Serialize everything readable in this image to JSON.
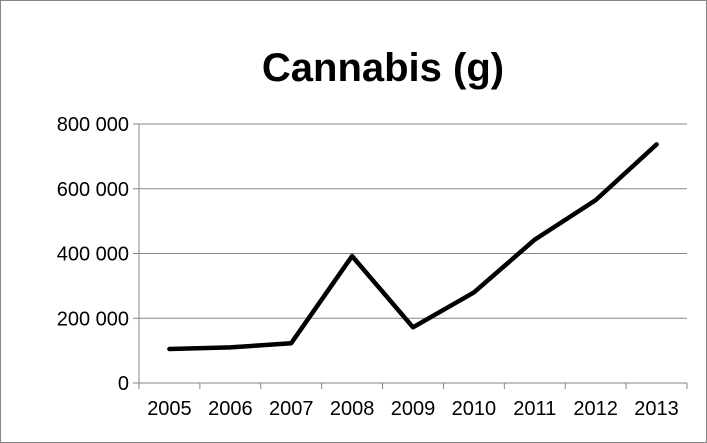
{
  "chart_data": {
    "type": "line",
    "title": "Cannabis (g)",
    "xlabel": "",
    "ylabel": "",
    "categories": [
      "2005",
      "2006",
      "2007",
      "2008",
      "2009",
      "2010",
      "2011",
      "2012",
      "2013"
    ],
    "series": [
      {
        "values": [
          105000,
          110000,
          123000,
          392000,
          172000,
          280000,
          443000,
          565000,
          737000
        ],
        "color": "#000000"
      }
    ],
    "ylim": [
      0,
      800000
    ],
    "yticks": [
      0,
      200000,
      400000,
      600000,
      800000
    ],
    "ytick_labels": [
      "0",
      "200 000",
      "400 000",
      "600 000",
      "800 000"
    ],
    "grid": true,
    "legend": "none",
    "colors": {
      "grid": "#868686",
      "axis": "#868686",
      "line": "#000000"
    }
  }
}
